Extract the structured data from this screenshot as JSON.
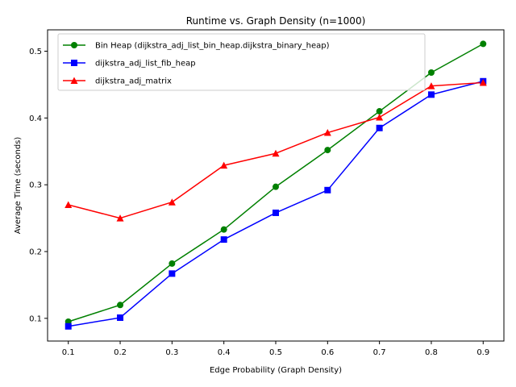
{
  "chart_data": {
    "type": "line",
    "title": "Runtime vs. Graph Density (n=1000)",
    "xlabel": "Edge Probability (Graph Density)",
    "ylabel": "Average Time (seconds)",
    "x": [
      0.1,
      0.2,
      0.3,
      0.4,
      0.5,
      0.6,
      0.7,
      0.8,
      0.9
    ],
    "x_tick_labels": [
      "0.1",
      "0.2",
      "0.3",
      "0.4",
      "0.5",
      "0.6",
      "0.7",
      "0.8",
      "0.9"
    ],
    "y_ticks": [
      0.1,
      0.2,
      0.3,
      0.4,
      0.5
    ],
    "y_tick_labels": [
      "0.1",
      "0.2",
      "0.3",
      "0.4",
      "0.5"
    ],
    "xlim": [
      0.06,
      0.94
    ],
    "ylim": [
      0.066,
      0.532
    ],
    "grid": false,
    "legend_position": "top-left",
    "series": [
      {
        "name": "Bin Heap (dijkstra_adj_list_bin_heap.dijkstra_binary_heap)",
        "color": "#008000",
        "marker": "circle",
        "values": [
          0.095,
          0.12,
          0.182,
          0.233,
          0.297,
          0.352,
          0.41,
          0.468,
          0.511
        ]
      },
      {
        "name": "dijkstra_adj_list_fib_heap",
        "color": "#0000ff",
        "marker": "square",
        "values": [
          0.088,
          0.101,
          0.167,
          0.218,
          0.258,
          0.292,
          0.385,
          0.435,
          0.455
        ]
      },
      {
        "name": "dijkstra_adj_matrix",
        "color": "#ff0000",
        "marker": "triangle",
        "values": [
          0.27,
          0.25,
          0.274,
          0.329,
          0.347,
          0.378,
          0.401,
          0.448,
          0.453
        ]
      }
    ]
  }
}
